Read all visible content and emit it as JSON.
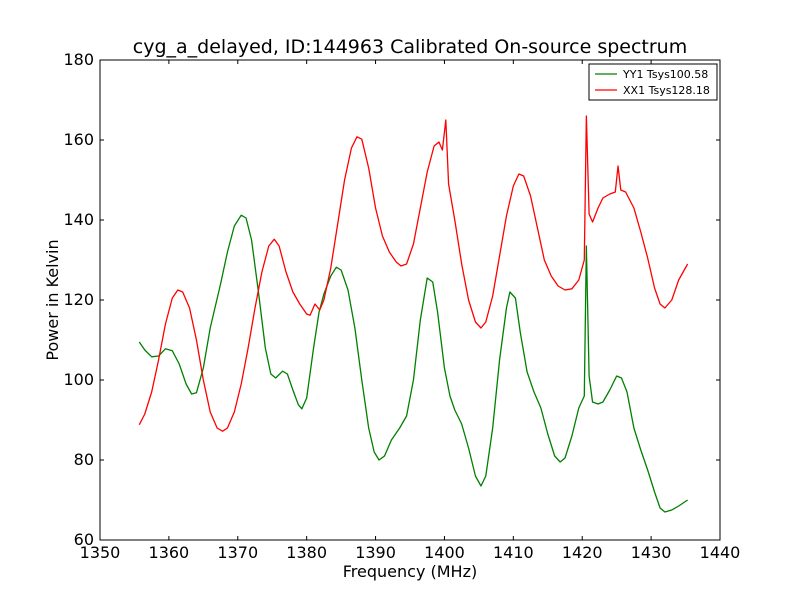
{
  "chart_data": {
    "type": "line",
    "title": "cyg_a_delayed, ID:144963 Calibrated On-source spectrum",
    "xlabel": "Frequency (MHz)",
    "ylabel": "Power in Kelvin",
    "xlim": [
      1350,
      1440
    ],
    "ylim": [
      60,
      180
    ],
    "xticks": [
      1350,
      1360,
      1370,
      1380,
      1390,
      1400,
      1410,
      1420,
      1430,
      1440
    ],
    "yticks": [
      60,
      80,
      100,
      120,
      140,
      160,
      180
    ],
    "grid": false,
    "legend_position": "top-right",
    "series": [
      {
        "name": "YY1 Tsys100.58",
        "color": "#008000",
        "points": [
          [
            1355.7,
            109.5
          ],
          [
            1356.5,
            107.5
          ],
          [
            1357.5,
            105.8
          ],
          [
            1358.5,
            106.0
          ],
          [
            1359.5,
            107.8
          ],
          [
            1360.5,
            107.3
          ],
          [
            1361.5,
            104.0
          ],
          [
            1362.5,
            99.0
          ],
          [
            1363.3,
            96.5
          ],
          [
            1364.0,
            96.8
          ],
          [
            1365.0,
            103.0
          ],
          [
            1366.0,
            113.0
          ],
          [
            1367.5,
            124.0
          ],
          [
            1368.5,
            132.0
          ],
          [
            1369.5,
            138.5
          ],
          [
            1370.5,
            141.2
          ],
          [
            1371.2,
            140.5
          ],
          [
            1372.0,
            135.0
          ],
          [
            1373.0,
            122.0
          ],
          [
            1374.0,
            108.0
          ],
          [
            1374.8,
            101.5
          ],
          [
            1375.5,
            100.5
          ],
          [
            1376.5,
            102.2
          ],
          [
            1377.2,
            101.5
          ],
          [
            1378.0,
            97.5
          ],
          [
            1378.8,
            93.8
          ],
          [
            1379.3,
            92.8
          ],
          [
            1380.0,
            95.5
          ],
          [
            1381.0,
            108.0
          ],
          [
            1381.8,
            117.0
          ],
          [
            1382.5,
            121.5
          ],
          [
            1383.5,
            126.0
          ],
          [
            1384.3,
            128.2
          ],
          [
            1385.0,
            127.5
          ],
          [
            1386.0,
            122.5
          ],
          [
            1387.0,
            113.0
          ],
          [
            1388.0,
            100.0
          ],
          [
            1389.0,
            88.0
          ],
          [
            1389.8,
            82.0
          ],
          [
            1390.5,
            80.0
          ],
          [
            1391.3,
            81.0
          ],
          [
            1392.3,
            85.0
          ],
          [
            1393.5,
            88.0
          ],
          [
            1394.5,
            91.0
          ],
          [
            1395.5,
            100.0
          ],
          [
            1396.5,
            115.0
          ],
          [
            1397.5,
            125.5
          ],
          [
            1398.3,
            124.5
          ],
          [
            1399.0,
            117.0
          ],
          [
            1400.0,
            103.0
          ],
          [
            1400.8,
            96.0
          ],
          [
            1401.5,
            92.5
          ],
          [
            1402.5,
            89.0
          ],
          [
            1403.5,
            83.0
          ],
          [
            1404.5,
            76.0
          ],
          [
            1405.3,
            73.5
          ],
          [
            1406.0,
            76.0
          ],
          [
            1407.0,
            88.0
          ],
          [
            1408.0,
            105.0
          ],
          [
            1409.0,
            118.0
          ],
          [
            1409.5,
            122.0
          ],
          [
            1410.3,
            120.5
          ],
          [
            1411.0,
            112.0
          ],
          [
            1412.0,
            102.0
          ],
          [
            1413.0,
            97.0
          ],
          [
            1414.0,
            93.0
          ],
          [
            1415.0,
            86.5
          ],
          [
            1416.0,
            81.0
          ],
          [
            1416.8,
            79.5
          ],
          [
            1417.5,
            80.5
          ],
          [
            1418.5,
            86.0
          ],
          [
            1419.5,
            93.0
          ],
          [
            1420.3,
            96.0
          ],
          [
            1420.6,
            133.5
          ],
          [
            1421.0,
            101.0
          ],
          [
            1421.5,
            94.5
          ],
          [
            1422.3,
            94.0
          ],
          [
            1423.0,
            94.5
          ],
          [
            1424.0,
            97.5
          ],
          [
            1425.0,
            101.0
          ],
          [
            1425.7,
            100.5
          ],
          [
            1426.5,
            97.0
          ],
          [
            1427.5,
            88.0
          ],
          [
            1428.5,
            82.5
          ],
          [
            1429.5,
            77.5
          ],
          [
            1430.5,
            72.0
          ],
          [
            1431.3,
            68.0
          ],
          [
            1432.0,
            67.0
          ],
          [
            1433.0,
            67.5
          ],
          [
            1434.0,
            68.5
          ],
          [
            1435.3,
            70.0
          ]
        ]
      },
      {
        "name": "XX1 Tsys128.18",
        "color": "#ff0000",
        "points": [
          [
            1355.7,
            88.8
          ],
          [
            1356.5,
            91.5
          ],
          [
            1357.5,
            97.0
          ],
          [
            1358.5,
            105.0
          ],
          [
            1359.5,
            114.0
          ],
          [
            1360.5,
            120.5
          ],
          [
            1361.3,
            122.5
          ],
          [
            1362.0,
            122.0
          ],
          [
            1363.0,
            118.0
          ],
          [
            1364.0,
            110.0
          ],
          [
            1365.0,
            100.0
          ],
          [
            1366.0,
            92.0
          ],
          [
            1367.0,
            88.0
          ],
          [
            1367.8,
            87.2
          ],
          [
            1368.5,
            88.0
          ],
          [
            1369.5,
            92.0
          ],
          [
            1370.5,
            99.0
          ],
          [
            1371.5,
            108.0
          ],
          [
            1372.5,
            118.0
          ],
          [
            1373.5,
            127.0
          ],
          [
            1374.5,
            133.5
          ],
          [
            1375.3,
            135.2
          ],
          [
            1376.0,
            133.5
          ],
          [
            1377.0,
            127.0
          ],
          [
            1378.0,
            122.0
          ],
          [
            1379.0,
            119.0
          ],
          [
            1380.0,
            116.5
          ],
          [
            1380.5,
            116.2
          ],
          [
            1381.2,
            119.0
          ],
          [
            1381.9,
            117.5
          ],
          [
            1382.5,
            120.0
          ],
          [
            1383.5,
            128.0
          ],
          [
            1384.5,
            139.0
          ],
          [
            1385.5,
            150.0
          ],
          [
            1386.5,
            158.0
          ],
          [
            1387.3,
            160.8
          ],
          [
            1388.0,
            160.2
          ],
          [
            1389.0,
            153.0
          ],
          [
            1390.0,
            143.0
          ],
          [
            1391.0,
            136.0
          ],
          [
            1392.0,
            132.0
          ],
          [
            1393.0,
            129.5
          ],
          [
            1393.7,
            128.5
          ],
          [
            1394.5,
            129.0
          ],
          [
            1395.5,
            134.0
          ],
          [
            1396.5,
            143.0
          ],
          [
            1397.5,
            152.0
          ],
          [
            1398.5,
            158.5
          ],
          [
            1399.2,
            159.5
          ],
          [
            1399.7,
            157.5
          ],
          [
            1400.2,
            165.0
          ],
          [
            1400.6,
            149.0
          ],
          [
            1401.5,
            140.0
          ],
          [
            1402.5,
            129.0
          ],
          [
            1403.5,
            120.0
          ],
          [
            1404.5,
            114.5
          ],
          [
            1405.3,
            113.0
          ],
          [
            1406.0,
            114.5
          ],
          [
            1407.0,
            121.0
          ],
          [
            1408.0,
            131.0
          ],
          [
            1409.0,
            141.0
          ],
          [
            1410.0,
            148.5
          ],
          [
            1410.8,
            151.5
          ],
          [
            1411.5,
            151.0
          ],
          [
            1412.5,
            146.0
          ],
          [
            1413.5,
            138.0
          ],
          [
            1414.5,
            130.0
          ],
          [
            1415.5,
            126.0
          ],
          [
            1416.5,
            123.5
          ],
          [
            1417.5,
            122.5
          ],
          [
            1418.5,
            122.8
          ],
          [
            1419.5,
            125.0
          ],
          [
            1420.3,
            130.0
          ],
          [
            1420.6,
            166.0
          ],
          [
            1421.0,
            141.5
          ],
          [
            1421.5,
            139.5
          ],
          [
            1422.3,
            143.0
          ],
          [
            1423.0,
            145.5
          ],
          [
            1424.0,
            146.5
          ],
          [
            1424.8,
            147.0
          ],
          [
            1425.2,
            153.5
          ],
          [
            1425.6,
            147.5
          ],
          [
            1426.3,
            147.0
          ],
          [
            1427.5,
            143.0
          ],
          [
            1428.5,
            137.0
          ],
          [
            1429.5,
            130.5
          ],
          [
            1430.5,
            123.0
          ],
          [
            1431.3,
            119.0
          ],
          [
            1432.0,
            118.0
          ],
          [
            1433.0,
            120.0
          ],
          [
            1434.0,
            125.0
          ],
          [
            1435.3,
            129.0
          ]
        ]
      }
    ]
  }
}
